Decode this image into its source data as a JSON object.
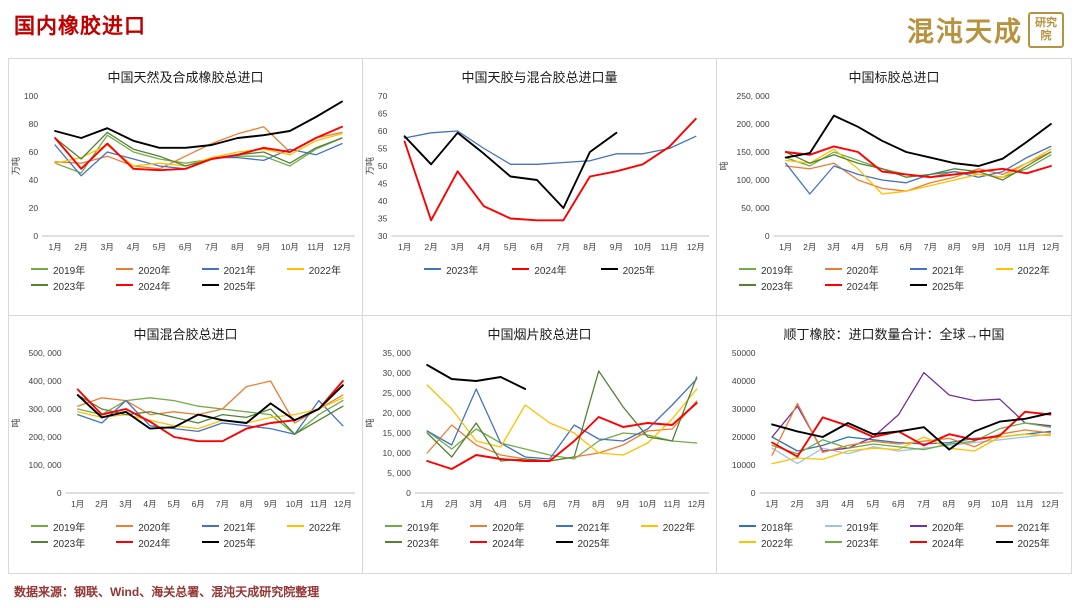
{
  "header": {
    "title": "国内橡胶进口",
    "logo": {
      "text": "混沌天成",
      "seal": "研究院"
    }
  },
  "footer": {
    "source": "数据来源：钢联、Wind、海关总署、混沌天成研究院整理"
  },
  "colors": {
    "title_red": "#C00000",
    "logo_gold": "#B7933F",
    "footer_brown": "#943634",
    "panel_border": "#D9D9D9",
    "axis_text": "#404040",
    "axis_line": "#BFBFBF"
  },
  "chart_data": [
    {
      "type": "line",
      "title": "中国天然及合成橡胶总进口",
      "ylabel": "万吨",
      "x_labels": [
        "1月",
        "2月",
        "3月",
        "4月",
        "5月",
        "6月",
        "7月",
        "8月",
        "9月",
        "10月",
        "11月",
        "12月"
      ],
      "ylim": [
        0,
        100
      ],
      "yticks": [
        0,
        20,
        40,
        60,
        80,
        100
      ],
      "ytick_labels": [
        "0",
        "20",
        "40",
        "60",
        "80",
        "100"
      ],
      "grid": false,
      "legend_position": "bottom",
      "series": [
        {
          "name": "2019年",
          "color": "#70AD47",
          "values": [
            52,
            45,
            72,
            60,
            55,
            52,
            55,
            57,
            57,
            50,
            62,
            70
          ]
        },
        {
          "name": "2020年",
          "color": "#ED7D31",
          "values": [
            53,
            52,
            57,
            50,
            48,
            57,
            66,
            73,
            78,
            60,
            70,
            74
          ]
        },
        {
          "name": "2021年",
          "color": "#4472C4",
          "values": [
            65,
            43,
            60,
            55,
            50,
            48,
            56,
            56,
            54,
            62,
            58,
            66
          ]
        },
        {
          "name": "2022年",
          "color": "#FFC000",
          "values": [
            52,
            56,
            65,
            50,
            52,
            50,
            56,
            60,
            62,
            58,
            68,
            73
          ]
        },
        {
          "name": "2023年",
          "color": "#548235",
          "values": [
            70,
            55,
            74,
            62,
            57,
            50,
            55,
            58,
            60,
            52,
            63,
            70
          ]
        },
        {
          "name": "2024年",
          "color": "#FF0000",
          "values": [
            70,
            48,
            66,
            48,
            47,
            48,
            55,
            58,
            63,
            60,
            70,
            78
          ]
        },
        {
          "name": "2025年",
          "color": "#000000",
          "values": [
            75,
            70,
            77,
            68,
            63,
            63,
            65,
            70,
            72,
            75,
            85,
            96
          ]
        }
      ]
    },
    {
      "type": "line",
      "title": "中国天胶与混合胶总进口量",
      "ylabel": "万吨",
      "x_labels": [
        "1月",
        "2月",
        "3月",
        "4月",
        "5月",
        "6月",
        "7月",
        "8月",
        "9月",
        "10月",
        "11月",
        "12月"
      ],
      "ylim": [
        30,
        70
      ],
      "yticks": [
        30,
        35,
        40,
        45,
        50,
        55,
        60,
        65,
        70
      ],
      "ytick_labels": [
        "30",
        "35",
        "40",
        "45",
        "50",
        "55",
        "60",
        "65",
        "70"
      ],
      "grid": false,
      "legend_position": "bottom",
      "series": [
        {
          "name": "2023年",
          "color": "#4472C4",
          "values": [
            58,
            59.5,
            60,
            55,
            50.5,
            50.5,
            51,
            51.5,
            53.5,
            53.5,
            55,
            58.5
          ]
        },
        {
          "name": "2024年",
          "color": "#FF0000",
          "values": [
            57,
            34.5,
            48.5,
            38.5,
            35,
            34.5,
            34.5,
            47,
            48.5,
            50.5,
            55.5,
            63.5
          ]
        },
        {
          "name": "2025年",
          "color": "#000000",
          "values": [
            58.5,
            50.5,
            59.5,
            53.5,
            47,
            46,
            38,
            54,
            59.5
          ]
        }
      ]
    },
    {
      "type": "line",
      "title": "中国标胶总进口",
      "ylabel": "吨",
      "x_labels": [
        "1月",
        "2月",
        "3月",
        "4月",
        "5月",
        "6月",
        "7月",
        "8月",
        "9月",
        "10月",
        "11月",
        "12月"
      ],
      "ylim": [
        0,
        250000
      ],
      "yticks": [
        0,
        50000,
        100000,
        150000,
        200000,
        250000
      ],
      "ytick_labels": [
        "0",
        "50, 000",
        "100, 000",
        "150, 000",
        "200, 000",
        "250, 000"
      ],
      "grid": false,
      "legend_position": "bottom",
      "series": [
        {
          "name": "2019年",
          "color": "#70AD47",
          "values": [
            140000,
            125000,
            150000,
            135000,
            120000,
            110000,
            105000,
            115000,
            110000,
            105000,
            120000,
            145000
          ]
        },
        {
          "name": "2020年",
          "color": "#ED7D31",
          "values": [
            125000,
            120000,
            130000,
            100000,
            85000,
            80000,
            95000,
            105000,
            120000,
            110000,
            130000,
            150000
          ]
        },
        {
          "name": "2021年",
          "color": "#4472C4",
          "values": [
            130000,
            75000,
            125000,
            110000,
            100000,
            95000,
            110000,
            115000,
            105000,
            115000,
            140000,
            160000
          ]
        },
        {
          "name": "2022年",
          "color": "#FFC000",
          "values": [
            135000,
            130000,
            155000,
            120000,
            75000,
            80000,
            90000,
            100000,
            110000,
            105000,
            130000,
            155000
          ]
        },
        {
          "name": "2023年",
          "color": "#548235",
          "values": [
            150000,
            130000,
            145000,
            130000,
            120000,
            105000,
            110000,
            120000,
            115000,
            100000,
            125000,
            150000
          ]
        },
        {
          "name": "2024年",
          "color": "#FF0000",
          "values": [
            150000,
            145000,
            160000,
            150000,
            115000,
            110000,
            105000,
            110000,
            115000,
            120000,
            112000,
            125000
          ]
        },
        {
          "name": "2025年",
          "color": "#000000",
          "values": [
            140000,
            148000,
            215000,
            195000,
            170000,
            150000,
            140000,
            130000,
            125000,
            138000,
            168000,
            200000
          ]
        }
      ]
    },
    {
      "type": "line",
      "title": "中国混合胶总进口",
      "ylabel": "吨",
      "x_labels": [
        "1月",
        "2月",
        "3月",
        "4月",
        "5月",
        "6月",
        "7月",
        "8月",
        "9月",
        "10月",
        "11月",
        "12月"
      ],
      "ylim": [
        0,
        500000
      ],
      "yticks": [
        0,
        100000,
        200000,
        300000,
        400000,
        500000
      ],
      "ytick_labels": [
        "0",
        "100, 000",
        "200, 000",
        "300, 000",
        "400, 000",
        "500, 000"
      ],
      "grid": false,
      "legend_position": "bottom",
      "series": [
        {
          "name": "2019年",
          "color": "#70AD47",
          "values": [
            300000,
            280000,
            330000,
            340000,
            330000,
            310000,
            300000,
            290000,
            280000,
            210000,
            280000,
            330000
          ]
        },
        {
          "name": "2020年",
          "color": "#ED7D31",
          "values": [
            310000,
            340000,
            330000,
            280000,
            290000,
            280000,
            300000,
            380000,
            400000,
            250000,
            300000,
            350000
          ]
        },
        {
          "name": "2021年",
          "color": "#4472C4",
          "values": [
            280000,
            250000,
            330000,
            240000,
            230000,
            220000,
            250000,
            240000,
            230000,
            210000,
            330000,
            240000
          ]
        },
        {
          "name": "2022年",
          "color": "#FFC000",
          "values": [
            290000,
            270000,
            280000,
            260000,
            240000,
            230000,
            260000,
            250000,
            270000,
            280000,
            300000,
            340000
          ]
        },
        {
          "name": "2023年",
          "color": "#548235",
          "values": [
            350000,
            300000,
            280000,
            290000,
            270000,
            250000,
            280000,
            270000,
            300000,
            210000,
            260000,
            310000
          ]
        },
        {
          "name": "2024年",
          "color": "#FF0000",
          "values": [
            370000,
            280000,
            300000,
            255000,
            200000,
            185000,
            185000,
            230000,
            250000,
            260000,
            300000,
            400000
          ]
        },
        {
          "name": "2025年",
          "color": "#000000",
          "values": [
            350000,
            270000,
            290000,
            230000,
            235000,
            280000,
            260000,
            250000,
            320000,
            260000,
            300000,
            385000
          ]
        }
      ]
    },
    {
      "type": "line",
      "title": "中国烟片胶总进口",
      "ylabel": "吨",
      "x_labels": [
        "1月",
        "2月",
        "3月",
        "4月",
        "5月",
        "6月",
        "7月",
        "8月",
        "9月",
        "10月",
        "11月",
        "12月"
      ],
      "ylim": [
        0,
        35000
      ],
      "yticks": [
        0,
        5000,
        10000,
        15000,
        20000,
        25000,
        30000,
        35000
      ],
      "ytick_labels": [
        "0",
        "5, 000",
        "10, 000",
        "15, 000",
        "20, 000",
        "25, 000",
        "30, 000",
        "35, 000"
      ],
      "grid": false,
      "legend_position": "bottom",
      "series": [
        {
          "name": "2019年",
          "color": "#70AD47",
          "values": [
            15500,
            11000,
            16000,
            12500,
            11000,
            9500,
            8500,
            13000,
            15000,
            14500,
            13000,
            12500
          ]
        },
        {
          "name": "2020年",
          "color": "#ED7D31",
          "values": [
            10000,
            17000,
            12000,
            9500,
            8500,
            8000,
            9000,
            10000,
            12000,
            15500,
            16000,
            23000
          ]
        },
        {
          "name": "2021年",
          "color": "#4472C4",
          "values": [
            15500,
            12000,
            26000,
            12500,
            9000,
            8500,
            17000,
            13500,
            13000,
            16000,
            22000,
            28500
          ]
        },
        {
          "name": "2022年",
          "color": "#FFC000",
          "values": [
            27000,
            21000,
            13000,
            11500,
            22000,
            17500,
            15000,
            10000,
            9500,
            12500,
            18500,
            26000
          ]
        },
        {
          "name": "2023年",
          "color": "#548235",
          "values": [
            15000,
            9000,
            17500,
            8000,
            8500,
            8000,
            9000,
            30500,
            21500,
            14000,
            13000,
            29000
          ]
        },
        {
          "name": "2024年",
          "color": "#FF0000",
          "values": [
            8000,
            6000,
            9500,
            8500,
            8000,
            8000,
            13000,
            19000,
            16500,
            17500,
            17000,
            22500
          ]
        },
        {
          "name": "2025年",
          "color": "#000000",
          "values": [
            32000,
            28500,
            28000,
            29000,
            26000
          ]
        }
      ]
    },
    {
      "type": "line",
      "title": "顺丁橡胶：进口数量合计：全球→中国",
      "ylabel": "",
      "x_labels": [
        "1月",
        "2月",
        "3月",
        "4月",
        "5月",
        "6月",
        "7月",
        "8月",
        "9月",
        "10月",
        "11月",
        "12月"
      ],
      "ylim": [
        0,
        50000
      ],
      "yticks": [
        0,
        10000,
        20000,
        30000,
        40000,
        50000
      ],
      "ytick_labels": [
        "0",
        "10000",
        "20000",
        "30000",
        "40000",
        "50000"
      ],
      "grid": false,
      "legend_position": "bottom",
      "series": [
        {
          "name": "2018年",
          "color": "#2E75B6",
          "values": [
            20000,
            15000,
            17000,
            20000,
            19000,
            18000,
            17500,
            18000,
            19500,
            20000,
            21000,
            22000
          ]
        },
        {
          "name": "2019年",
          "color": "#9DC3E6",
          "values": [
            16000,
            10500,
            16000,
            14000,
            16500,
            15000,
            16000,
            17000,
            18000,
            19000,
            20000,
            21000
          ]
        },
        {
          "name": "2020年",
          "color": "#7030A0",
          "values": [
            20000,
            31000,
            15000,
            16000,
            20000,
            28000,
            43000,
            35000,
            33000,
            33500,
            25000,
            24000
          ]
        },
        {
          "name": "2021年",
          "color": "#ED7D31",
          "values": [
            13500,
            32000,
            14500,
            17000,
            18500,
            17500,
            18500,
            19500,
            16500,
            21000,
            22500,
            21500
          ]
        },
        {
          "name": "2022年",
          "color": "#FFC000",
          "values": [
            10500,
            12500,
            12000,
            15000,
            16000,
            15500,
            20000,
            16000,
            15000,
            20000,
            21000,
            20500
          ]
        },
        {
          "name": "2023年",
          "color": "#70AD47",
          "values": [
            17000,
            14000,
            19000,
            16000,
            17500,
            16500,
            15500,
            17500,
            18500,
            23000,
            25000,
            23500
          ]
        },
        {
          "name": "2024年",
          "color": "#FF0000",
          "values": [
            18000,
            13000,
            27000,
            24000,
            20000,
            22000,
            17000,
            21000,
            19000,
            20500,
            29000,
            28000
          ]
        },
        {
          "name": "2025年",
          "color": "#000000",
          "values": [
            24500,
            22000,
            20000,
            25000,
            21000,
            22000,
            23500,
            15500,
            22000,
            25500,
            26500,
            28500
          ]
        }
      ]
    }
  ]
}
